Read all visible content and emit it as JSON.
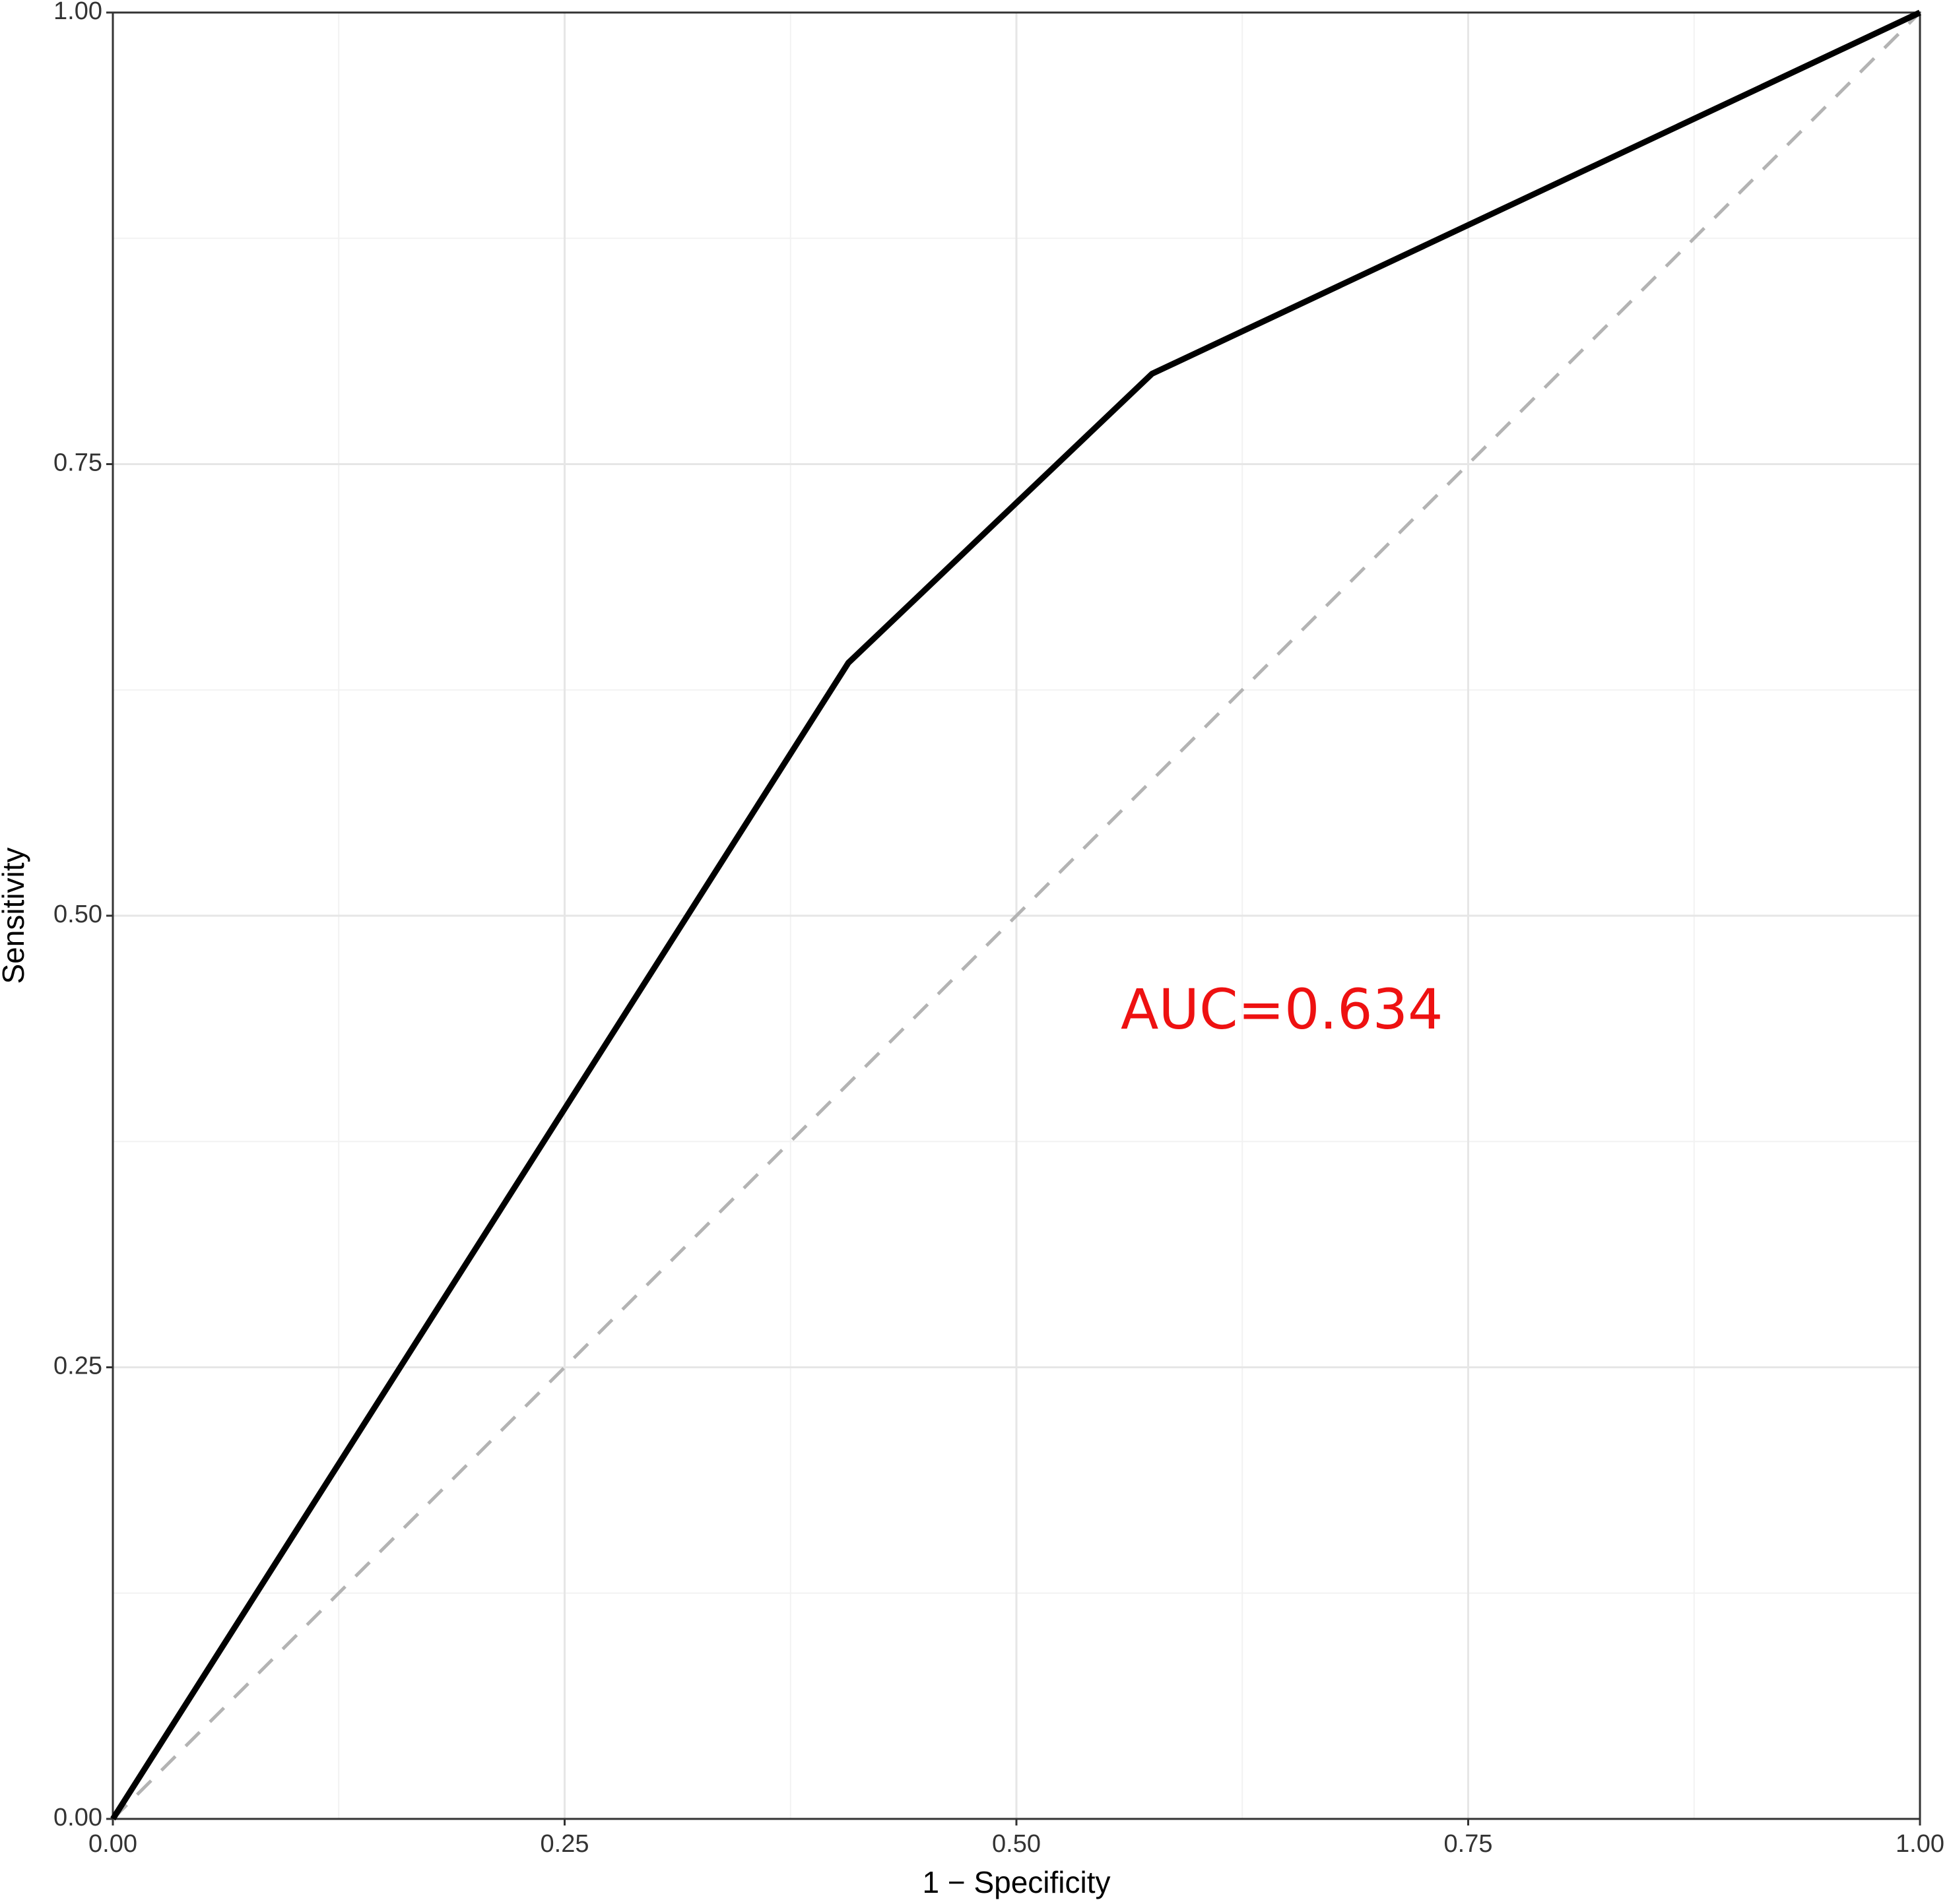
{
  "chart_data": {
    "type": "line",
    "xlabel": "1 − Specificity",
    "ylabel": "Sensitivity",
    "x": [
      0,
      0.407,
      0.575,
      1
    ],
    "series": [
      {
        "color": "#000000",
        "values": [
          0,
          0.64,
          0.8,
          1
        ]
      }
    ],
    "reference_line": {
      "x": [
        0,
        1
      ],
      "values": [
        0,
        1
      ],
      "color": "#b3b3b3",
      "dashed": true
    },
    "annotations": [
      {
        "text": "AUC=0.634",
        "color": "#ee1111"
      }
    ],
    "xlim": [
      0,
      1
    ],
    "ylim": [
      0,
      1
    ],
    "xticks": [
      {
        "value": 0,
        "label": "0.00"
      },
      {
        "value": 0.25,
        "label": "0.25"
      },
      {
        "value": 0.5,
        "label": "0.50"
      },
      {
        "value": 0.75,
        "label": "0.75"
      },
      {
        "value": 1,
        "label": "1.00"
      }
    ],
    "yticks": [
      {
        "value": 0,
        "label": "0.00"
      },
      {
        "value": 0.25,
        "label": "0.25"
      },
      {
        "value": 0.5,
        "label": "0.50"
      },
      {
        "value": 0.75,
        "label": "0.75"
      },
      {
        "value": 1,
        "label": "1.00"
      }
    ],
    "minor_xticks": [
      0.125,
      0.375,
      0.625,
      0.875
    ],
    "minor_yticks": [
      0.125,
      0.375,
      0.625,
      0.875
    ],
    "grid": true
  }
}
